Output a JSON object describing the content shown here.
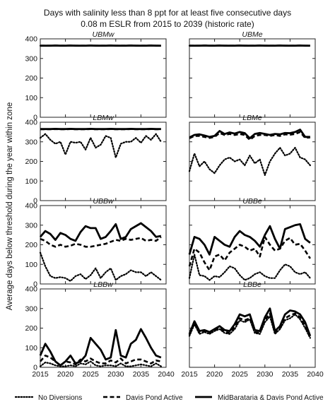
{
  "chart_data": {
    "type": "line",
    "title_lines": [
      "Days with salinity less than 8 ppt for at least five consecutive days",
      "0.08 m ESLR from 2015 to 2039 (historic rate)"
    ],
    "ylabel": "Average days below threshold during the year within zone",
    "xlabel": "",
    "xlim": [
      2015,
      2040
    ],
    "ylim": [
      0,
      400
    ],
    "x_ticks": [
      2015,
      2020,
      2025,
      2030,
      2035,
      2040
    ],
    "y_ticks": [
      0,
      100,
      200,
      300,
      400
    ],
    "grid": false,
    "legend_position": "bottom",
    "legend": [
      "No Diversions",
      "Davis Pond Active",
      "MidBarataria & Davis Pond Active"
    ],
    "x": [
      2015,
      2016,
      2017,
      2018,
      2019,
      2020,
      2021,
      2022,
      2023,
      2024,
      2025,
      2026,
      2027,
      2028,
      2029,
      2030,
      2031,
      2032,
      2033,
      2034,
      2035,
      2036,
      2037,
      2038,
      2039
    ],
    "panels": [
      {
        "name": "UBMw",
        "series": [
          {
            "name": "No Diversions",
            "style": "dotted",
            "values": [
              365,
              365,
              365,
              366,
              365,
              365,
              366,
              365,
              365,
              365,
              366,
              365,
              365,
              365,
              366,
              365,
              365,
              365,
              366,
              365,
              365,
              365,
              366,
              365,
              365
            ]
          },
          {
            "name": "Davis Pond Active",
            "style": "dashed",
            "values": [
              365,
              365,
              365,
              366,
              365,
              365,
              366,
              365,
              365,
              365,
              366,
              365,
              365,
              365,
              366,
              365,
              365,
              365,
              366,
              365,
              365,
              365,
              366,
              365,
              365
            ]
          },
          {
            "name": "MidBarataria & Davis Pond Active",
            "style": "solid",
            "values": [
              365,
              365,
              365,
              366,
              365,
              365,
              366,
              365,
              365,
              365,
              366,
              365,
              365,
              365,
              366,
              365,
              365,
              365,
              366,
              365,
              365,
              365,
              366,
              365,
              365
            ]
          }
        ]
      },
      {
        "name": "UBMe",
        "series": [
          {
            "name": "No Diversions",
            "style": "dotted",
            "values": [
              365,
              365,
              365,
              366,
              365,
              365,
              366,
              365,
              365,
              365,
              366,
              365,
              365,
              365,
              366,
              365,
              365,
              365,
              366,
              365,
              365,
              365,
              366,
              365,
              365
            ]
          },
          {
            "name": "Davis Pond Active",
            "style": "dashed",
            "values": [
              365,
              365,
              365,
              366,
              365,
              365,
              366,
              365,
              365,
              365,
              366,
              365,
              365,
              365,
              366,
              365,
              365,
              365,
              366,
              365,
              365,
              365,
              366,
              365,
              365
            ]
          },
          {
            "name": "MidBarataria & Davis Pond Active",
            "style": "solid",
            "values": [
              365,
              365,
              365,
              366,
              365,
              365,
              366,
              365,
              365,
              365,
              366,
              365,
              365,
              365,
              366,
              365,
              365,
              365,
              366,
              365,
              365,
              365,
              366,
              365,
              365
            ]
          }
        ]
      },
      {
        "name": "LBMw",
        "series": [
          {
            "name": "No Diversions",
            "style": "dotted",
            "values": [
              320,
              340,
              310,
              290,
              300,
              235,
              300,
              295,
              300,
              260,
              320,
              270,
              285,
              330,
              320,
              220,
              290,
              300,
              300,
              320,
              295,
              330,
              310,
              340,
              300
            ]
          },
          {
            "name": "Davis Pond Active",
            "style": "dashed",
            "values": [
              364,
              364,
              364,
              365,
              364,
              364,
              365,
              364,
              364,
              364,
              365,
              364,
              364,
              364,
              365,
              364,
              364,
              364,
              365,
              364,
              364,
              364,
              365,
              364,
              364
            ]
          },
          {
            "name": "MidBarataria & Davis Pond Active",
            "style": "solid",
            "values": [
              365,
              365,
              365,
              366,
              365,
              365,
              366,
              365,
              365,
              365,
              366,
              365,
              365,
              365,
              366,
              365,
              365,
              365,
              366,
              365,
              365,
              365,
              366,
              365,
              365
            ]
          }
        ]
      },
      {
        "name": "LBMe",
        "series": [
          {
            "name": "No Diversions",
            "style": "dotted",
            "values": [
              150,
              240,
              175,
              200,
              160,
              140,
              180,
              210,
              220,
              200,
              210,
              180,
              230,
              190,
              210,
              130,
              200,
              240,
              270,
              230,
              240,
              270,
              220,
              210,
              180
            ]
          },
          {
            "name": "Davis Pond Active",
            "style": "dashed",
            "values": [
              318,
              330,
              330,
              325,
              320,
              325,
              345,
              335,
              340,
              335,
              340,
              335,
              310,
              330,
              335,
              335,
              330,
              335,
              330,
              338,
              336,
              340,
              350,
              320,
              322
            ]
          },
          {
            "name": "MidBarataria & Davis Pond Active",
            "style": "solid",
            "values": [
              322,
              335,
              338,
              332,
              325,
              330,
              355,
              340,
              348,
              342,
              350,
              344,
              318,
              340,
              345,
              340,
              335,
              340,
              338,
              345,
              344,
              350,
              362,
              325,
              325
            ]
          }
        ]
      },
      {
        "name": "UBBw",
        "series": [
          {
            "name": "No Diversions",
            "style": "dotted",
            "values": [
              160,
              90,
              40,
              30,
              35,
              30,
              15,
              40,
              50,
              25,
              45,
              80,
              30,
              60,
              80,
              20,
              40,
              50,
              70,
              60,
              60,
              40,
              60,
              40,
              20
            ]
          },
          {
            "name": "Davis Pond Active",
            "style": "dashed",
            "values": [
              230,
              220,
              200,
              190,
              200,
              190,
              195,
              205,
              200,
              190,
              190,
              195,
              200,
              205,
              215,
              225,
              220,
              230,
              225,
              230,
              235,
              220,
              225,
              220,
              240
            ]
          },
          {
            "name": "MidBarataria & Davis Pond Active",
            "style": "solid",
            "values": [
              240,
              270,
              255,
              225,
              260,
              250,
              230,
              220,
              265,
              295,
              285,
              285,
              230,
              240,
              270,
              305,
              230,
              240,
              280,
              295,
              310,
              290,
              270,
              240,
              245
            ]
          }
        ]
      },
      {
        "name": "UBBe",
        "series": [
          {
            "name": "No Diversions",
            "style": "dotted",
            "values": [
              30,
              150,
              45,
              40,
              20,
              40,
              35,
              60,
              90,
              80,
              45,
              20,
              30,
              50,
              60,
              40,
              30,
              30,
              70,
              100,
              90,
              60,
              50,
              60,
              30
            ]
          },
          {
            "name": "Davis Pond Active",
            "style": "dashed",
            "values": [
              90,
              180,
              160,
              110,
              70,
              140,
              150,
              120,
              160,
              180,
              200,
              190,
              170,
              180,
              140,
              240,
              200,
              170,
              180,
              220,
              235,
              200,
              205,
              170,
              130
            ]
          },
          {
            "name": "MidBarataria & Davis Pond Active",
            "style": "solid",
            "values": [
              150,
              240,
              230,
              200,
              150,
              240,
              220,
              200,
              190,
              240,
              270,
              250,
              240,
              220,
              190,
              250,
              295,
              230,
              180,
              280,
              290,
              300,
              305,
              230,
              210
            ]
          }
        ]
      },
      {
        "name": "LBBw",
        "series": [
          {
            "name": "No Diversions",
            "style": "dotted",
            "values": [
              5,
              25,
              20,
              10,
              5,
              5,
              10,
              5,
              20,
              15,
              30,
              10,
              5,
              10,
              10,
              5,
              20,
              5,
              5,
              10,
              15,
              10,
              5,
              20,
              5
            ]
          },
          {
            "name": "Davis Pond Active",
            "style": "dashed",
            "values": [
              30,
              60,
              50,
              30,
              10,
              30,
              25,
              15,
              40,
              30,
              45,
              30,
              20,
              20,
              35,
              25,
              45,
              20,
              30,
              40,
              40,
              30,
              20,
              35,
              30
            ]
          },
          {
            "name": "MidBarataria & Davis Pond Active",
            "style": "solid",
            "values": [
              60,
              120,
              80,
              30,
              10,
              30,
              60,
              20,
              30,
              60,
              150,
              120,
              90,
              40,
              50,
              190,
              60,
              50,
              120,
              140,
              195,
              150,
              100,
              60,
              50
            ]
          }
        ]
      },
      {
        "name": "LBBe",
        "series": [
          {
            "name": "No Diversions",
            "style": "dotted",
            "values": [
              160,
              220,
              170,
              180,
              170,
              185,
              195,
              175,
              170,
              195,
              240,
              230,
              245,
              175,
              170,
              230,
              260,
              170,
              195,
              240,
              250,
              270,
              245,
              200,
              150
            ]
          },
          {
            "name": "Davis Pond Active",
            "style": "dashed",
            "values": [
              165,
              225,
              175,
              185,
              175,
              190,
              200,
              180,
              175,
              205,
              250,
              240,
              250,
              180,
              175,
              240,
              275,
              175,
              200,
              250,
              265,
              275,
              255,
              210,
              150
            ]
          },
          {
            "name": "MidBarataria & Davis Pond Active",
            "style": "solid",
            "values": [
              170,
              235,
              185,
              190,
              180,
              195,
              210,
              190,
              185,
              220,
              270,
              260,
              270,
              190,
              185,
              255,
              300,
              185,
              210,
              270,
              290,
              285,
              270,
              230,
              160
            ]
          }
        ]
      }
    ]
  }
}
